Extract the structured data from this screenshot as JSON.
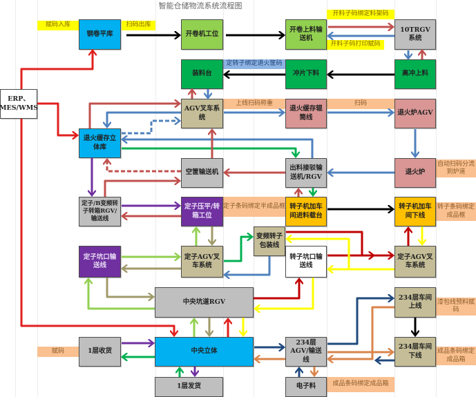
{
  "title": "智能仓储物流系统流程图",
  "colors": {
    "red": "#e0201e",
    "salmon": "#c0504d",
    "blue": "#4f81bd",
    "green": "#00b050",
    "purple": "#7030a0",
    "lightgreen": "#92d050",
    "olive": "#a09a6a",
    "yellow": "#ffff00",
    "darkred": "#c00000",
    "navy": "#1f497d",
    "orange": "#d9844a",
    "black": "#000000"
  },
  "nodes": {
    "erp": "ERP、MES/WMS",
    "steel_coil": "钢卷平库",
    "uncoiler": "开卷机工位",
    "uncoil_feed": "开卷上料输送机",
    "rgv10t": "10TRGV系统",
    "loading_table": "装料台",
    "punch_unload": "冲片下料",
    "high_punch": "高冲上料",
    "agv_forklift": "AGV叉车系统",
    "anneal_roller": "退火缓存辊筒线",
    "furnace_agv": "退火炉AGV",
    "anneal_store": "退火缓存立体库",
    "empty_conveyor": "空筐输送机",
    "outfeed": "出料接驳输送机/RGV",
    "furnace": "退火炉",
    "stator_rgv": "定子/B变频转子转箱RGV/输送线",
    "stator_press": "定子压平/转箱工位",
    "rotor_infeed": "转子机加车间进料载台",
    "rotor_offline": "转子机加车间下线",
    "vf_rotor_pack": "变频转子包装线",
    "rotor_pit": "转子坑口输送线",
    "stator_pit": "定子坑口输送线",
    "stator_agv_left": "定子AGV叉车系统",
    "stator_agv_right": "定子AGV叉车系统",
    "central_rgv": "中央坑道RGV",
    "floor234_online": "234层车间上线",
    "floor1_receive": "1层收货",
    "central_store": "中央立体",
    "floor234_agv": "234层AGV/输送线",
    "floor234_offline": "234层车间下线",
    "floor1_ship": "1层发货",
    "electronics": "电子料"
  },
  "labels": {
    "code_in": "赋码入库",
    "scan_out": "扫码出库",
    "bind_rack": "开料子码绑定料架码",
    "print_code": "开料子码打印赋码",
    "bind_basket": "定转子绑定退火筐码",
    "scan_weigh": "上线扫码称重",
    "scan": "扫码",
    "auto_divert": "自动扫码分流到炉道",
    "stator_bind": "定子条码绑定半成品框",
    "rotor_bind": "转子条码绑定成品框",
    "enamel_code": "漆包线预料赋码",
    "product_bind_right": "成品条码绑定成品箱",
    "code": "赋码",
    "product_bind_bottom": "成品条码绑定成品箱"
  }
}
